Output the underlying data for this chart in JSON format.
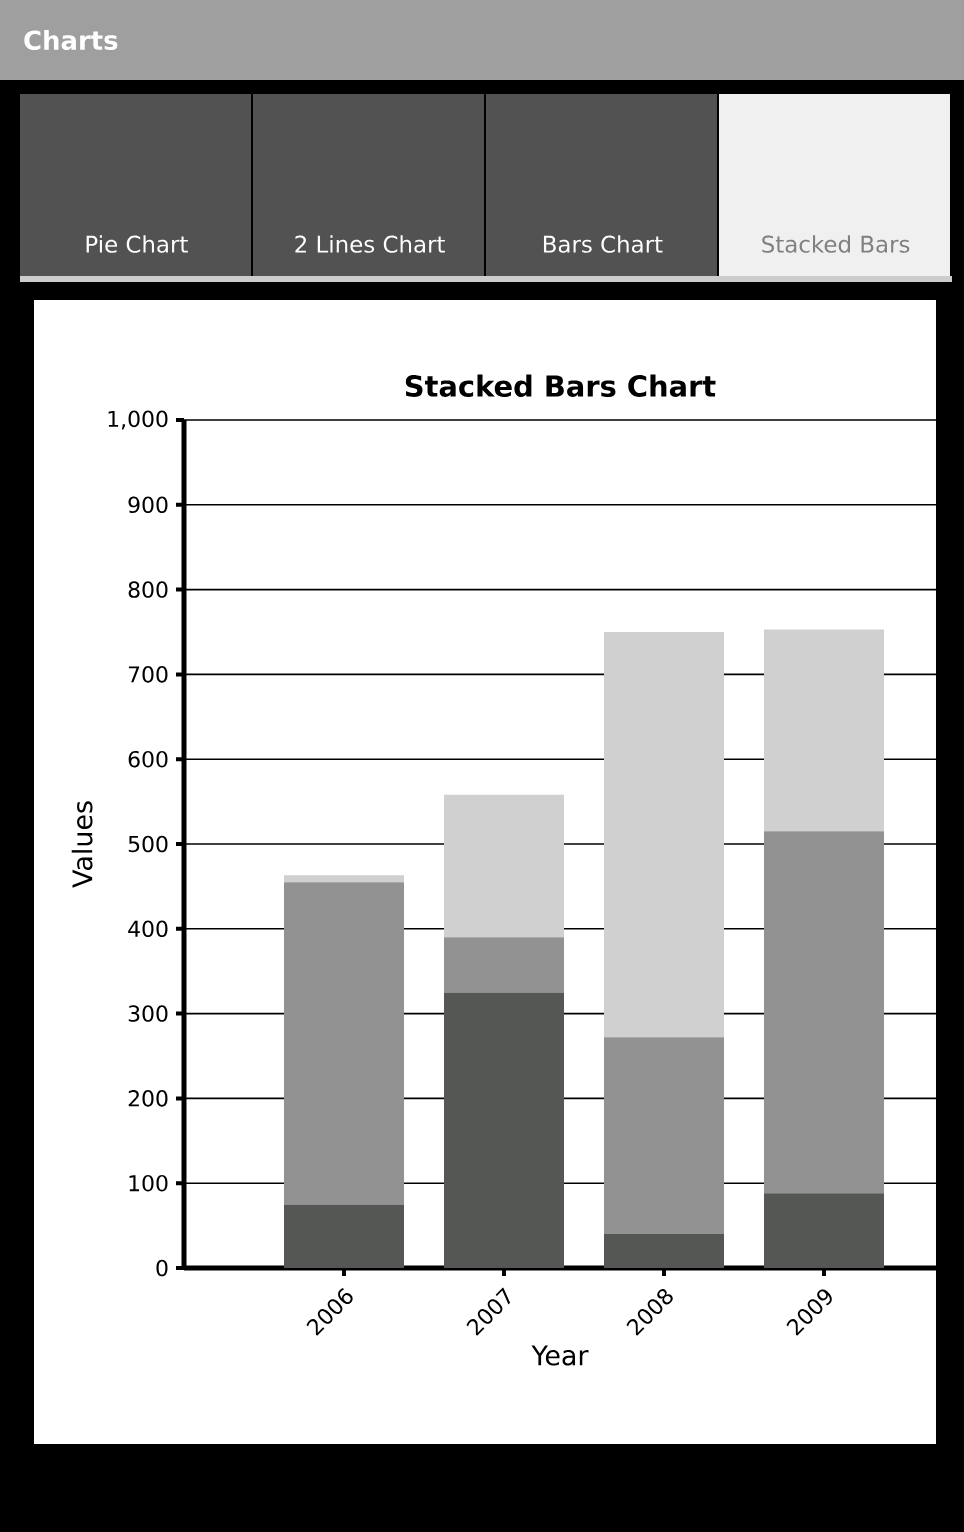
{
  "chart_data": {
    "type": "bar",
    "stacked": true,
    "title": "Stacked Bars Chart",
    "xlabel": "Year",
    "ylabel": "Values",
    "annotations": [
      "Charts",
      "Pie Chart",
      "2 Lines Chart",
      "Bars Chart",
      "Stacked Bars"
    ],
    "categories": [
      "2006",
      "2007",
      "2008",
      "2009"
    ],
    "series": [
      {
        "color": "#555755",
        "values": [
          75,
          325,
          40,
          88
        ]
      },
      {
        "color": "#929292",
        "values": [
          380,
          65,
          232,
          427
        ]
      },
      {
        "color": "#d0d0d0",
        "values": [
          8,
          168,
          478,
          238
        ]
      }
    ],
    "ylim": [
      0,
      1000
    ],
    "yticks": [
      0,
      100,
      200,
      300,
      400,
      500,
      600,
      700,
      800,
      900,
      {
        "value": 1000,
        "label": "1,000"
      }
    ],
    "grid": "y"
  }
}
